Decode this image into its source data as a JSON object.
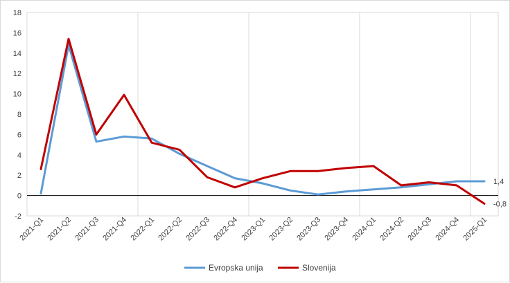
{
  "chart_data": {
    "type": "line",
    "title": "",
    "xlabel": "",
    "ylabel": "",
    "ylim": [
      -2,
      18
    ],
    "yticks": [
      -2,
      0,
      2,
      4,
      6,
      8,
      10,
      12,
      14,
      16,
      18
    ],
    "grid": "vertical every 4 quarters",
    "legend_position": "bottom",
    "categories": [
      "2021-Q1",
      "2021-Q2",
      "2021-Q3",
      "2021-Q4",
      "2022-Q1",
      "2022-Q2",
      "2022-Q3",
      "2022-Q4",
      "2023-Q1",
      "2023-Q2",
      "2023-Q3",
      "2023-Q4",
      "2024-Q1",
      "2024-Q2",
      "2024-Q3",
      "2024-Q4",
      "2025-Q1"
    ],
    "series": [
      {
        "name": "Evropska unija",
        "color": "#5b9bd5",
        "values": [
          0.2,
          14.8,
          5.3,
          5.8,
          5.6,
          4.1,
          2.9,
          1.7,
          1.2,
          0.5,
          0.1,
          0.4,
          0.6,
          0.8,
          1.1,
          1.4,
          1.4
        ],
        "end_label": "1,4"
      },
      {
        "name": "Slovenija",
        "color": "#c00000",
        "values": [
          2.6,
          15.4,
          6.0,
          9.9,
          5.2,
          4.5,
          1.8,
          0.8,
          1.7,
          2.4,
          2.4,
          2.7,
          2.9,
          1.0,
          1.3,
          1.0,
          -0.8
        ],
        "end_label": "-0,8"
      }
    ]
  }
}
